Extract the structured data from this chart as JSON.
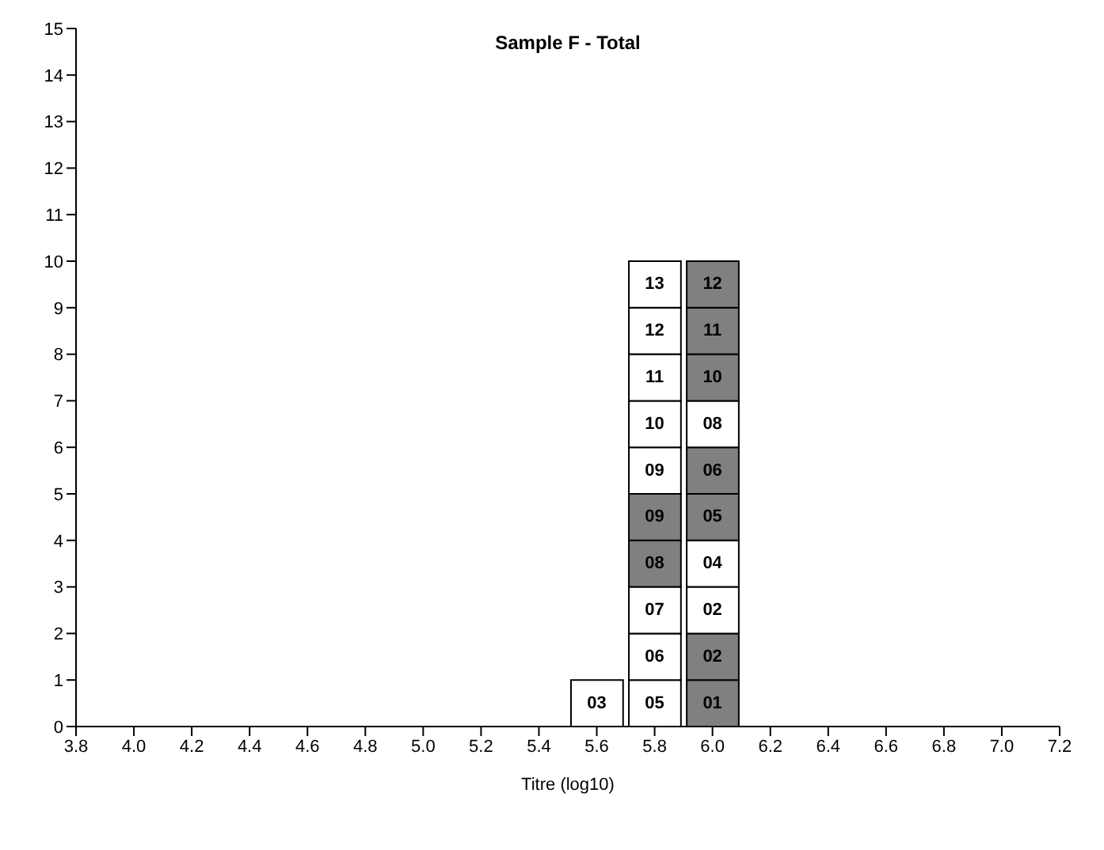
{
  "chart_data": {
    "type": "bar",
    "stacked": true,
    "title": "Sample F - Total",
    "xlabel": "Titre (log10)",
    "x": [
      5.6,
      5.8,
      6.0
    ],
    "series": [
      {
        "values": [
          1,
          1,
          1
        ],
        "colors": [
          "#ffffff",
          "#ffffff",
          "#808080"
        ]
      },
      {
        "values": [
          null,
          1,
          1
        ],
        "colors": [
          null,
          "#ffffff",
          "#808080"
        ]
      },
      {
        "values": [
          null,
          1,
          1
        ],
        "colors": [
          null,
          "#ffffff",
          "#ffffff"
        ]
      },
      {
        "values": [
          null,
          1,
          1
        ],
        "colors": [
          null,
          "#808080",
          "#ffffff"
        ]
      },
      {
        "values": [
          null,
          1,
          1
        ],
        "colors": [
          null,
          "#808080",
          "#808080"
        ]
      },
      {
        "values": [
          null,
          1,
          1
        ],
        "colors": [
          null,
          "#ffffff",
          "#808080"
        ]
      },
      {
        "values": [
          null,
          1,
          1
        ],
        "colors": [
          null,
          "#ffffff",
          "#ffffff"
        ]
      },
      {
        "values": [
          null,
          1,
          1
        ],
        "colors": [
          null,
          "#ffffff",
          "#808080"
        ]
      },
      {
        "values": [
          null,
          1,
          1
        ],
        "colors": [
          null,
          "#ffffff",
          "#808080"
        ]
      },
      {
        "values": [
          null,
          1,
          1
        ],
        "colors": [
          null,
          "#ffffff",
          "#808080"
        ]
      }
    ],
    "annotations": [
      {
        "text": "03",
        "x": 5.6,
        "y": 1
      },
      {
        "text": "05",
        "x": 5.8,
        "y": 1
      },
      {
        "text": "06",
        "x": 5.8,
        "y": 2
      },
      {
        "text": "07",
        "x": 5.8,
        "y": 3
      },
      {
        "text": "08",
        "x": 5.8,
        "y": 4
      },
      {
        "text": "09",
        "x": 5.8,
        "y": 5
      },
      {
        "text": "09",
        "x": 5.8,
        "y": 6
      },
      {
        "text": "10",
        "x": 5.8,
        "y": 7
      },
      {
        "text": "11",
        "x": 5.8,
        "y": 8
      },
      {
        "text": "12",
        "x": 5.8,
        "y": 9
      },
      {
        "text": "13",
        "x": 5.8,
        "y": 10
      },
      {
        "text": "01",
        "x": 6.0,
        "y": 1
      },
      {
        "text": "02",
        "x": 6.0,
        "y": 2
      },
      {
        "text": "02",
        "x": 6.0,
        "y": 3
      },
      {
        "text": "04",
        "x": 6.0,
        "y": 4
      },
      {
        "text": "05",
        "x": 6.0,
        "y": 5
      },
      {
        "text": "06",
        "x": 6.0,
        "y": 6
      },
      {
        "text": "08",
        "x": 6.0,
        "y": 7
      },
      {
        "text": "10",
        "x": 6.0,
        "y": 8
      },
      {
        "text": "11",
        "x": 6.0,
        "y": 9
      },
      {
        "text": "12",
        "x": 6.0,
        "y": 10
      }
    ],
    "xlim": [
      3.8,
      7.2
    ],
    "xticks": [
      3.8,
      {
        "value": 4,
        "label": "4.0"
      },
      4.2,
      4.4,
      4.6,
      4.8,
      {
        "value": 5,
        "label": "5.0"
      },
      5.2,
      5.4,
      5.6,
      5.8,
      {
        "value": 6,
        "label": "6.0"
      },
      6.2,
      6.4,
      6.6,
      6.8,
      {
        "value": 7,
        "label": "7.0"
      },
      7.2
    ],
    "ylim": [
      0,
      15
    ],
    "yticks": [
      0,
      1,
      2,
      3,
      4,
      5,
      6,
      7,
      8,
      9,
      10,
      11,
      12,
      13,
      14,
      15
    ],
    "grid": false,
    "legend": false
  }
}
